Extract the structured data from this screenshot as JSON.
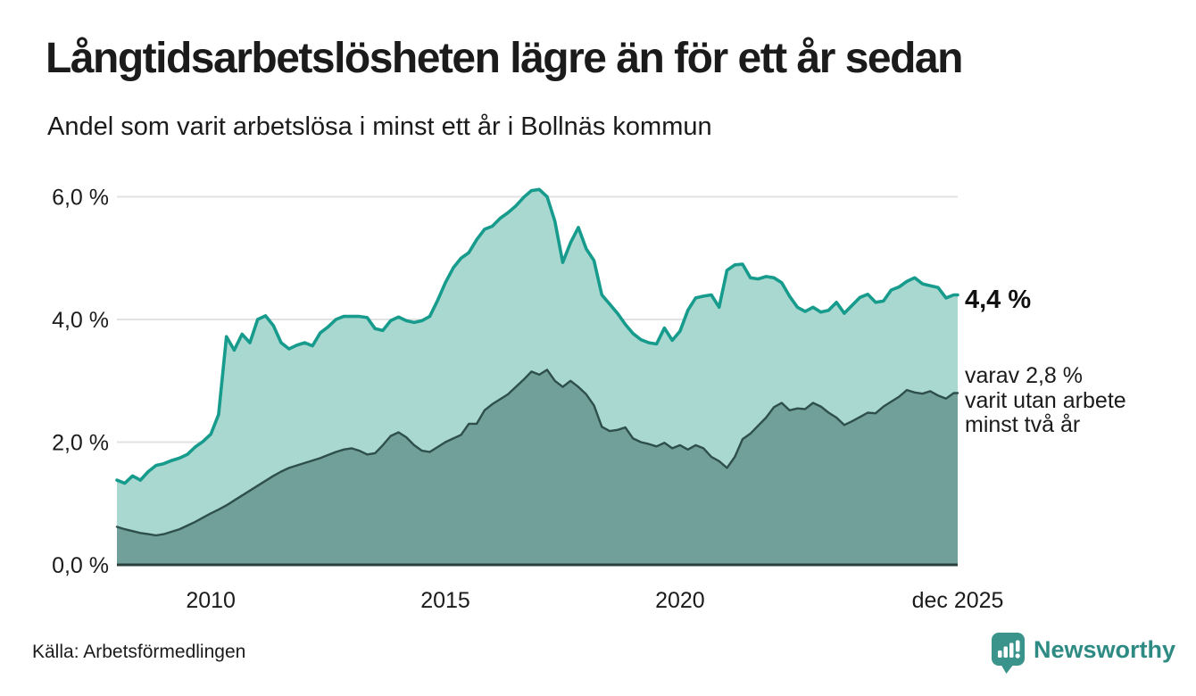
{
  "header": {
    "title": "Långtidsarbetslösheten lägre än för ett år sedan",
    "subtitle": "Andel som varit arbetslösa i minst ett år i Bollnäs kommun"
  },
  "annotations": {
    "latest_total": "4,4 %",
    "secondary": [
      "varav 2,8 %",
      "varit utan arbete",
      "minst två år"
    ]
  },
  "footer": {
    "source": "Källa: Arbetsförmedlingen",
    "brand": "Newsworthy"
  },
  "colors": {
    "accent_line": "#169b8c",
    "area_light": "#a5d6ce",
    "dark_line": "#2e4f4b",
    "area_dark": "#6f9d98",
    "grid": "#e2e2e2",
    "axis_baseline": "#2b3f3d",
    "text": "#1b1b1b",
    "brand_teal": "#2e8b84"
  },
  "chart_data": {
    "type": "area",
    "title": "Långtidsarbetslösheten lägre än för ett år sedan",
    "subtitle": "Andel som varit arbetslösa i minst ett år i Bollnäs kommun",
    "unit": "%",
    "x_start": "2008-01",
    "x_end": "2025-12",
    "step_months": 2,
    "ylim": [
      0,
      6.5
    ],
    "grid": true,
    "legend_position": "right-annotations",
    "x_ticks": [
      {
        "label": "2010",
        "month": 24
      },
      {
        "label": "2015",
        "month": 84
      },
      {
        "label": "2020",
        "month": 144
      },
      {
        "label": "dec 2025",
        "month": 215
      }
    ],
    "y_ticks": [
      {
        "label": "0,0 %",
        "value": 0
      },
      {
        "label": "2,0 %",
        "value": 2
      },
      {
        "label": "4,0 %",
        "value": 4
      },
      {
        "label": "6,0 %",
        "value": 6
      }
    ],
    "series": [
      {
        "name": "Andel arbetslösa minst ett år",
        "latest_label": "4,4 %",
        "latest_value": 4.4,
        "line_color": "#169b8c",
        "fill_color": "#a5d6ce",
        "values": [
          1.38,
          1.33,
          1.45,
          1.38,
          1.52,
          1.62,
          1.65,
          1.7,
          1.74,
          1.8,
          1.92,
          2.01,
          2.13,
          2.45,
          3.72,
          3.5,
          3.76,
          3.62,
          4.0,
          4.06,
          3.9,
          3.62,
          3.52,
          3.58,
          3.62,
          3.57,
          3.78,
          3.88,
          4.0,
          4.05,
          4.05,
          4.05,
          4.03,
          3.85,
          3.82,
          3.98,
          4.04,
          3.98,
          3.95,
          3.98,
          4.05,
          4.31,
          4.6,
          4.84,
          5.0,
          5.09,
          5.3,
          5.47,
          5.52,
          5.65,
          5.74,
          5.85,
          5.99,
          6.1,
          6.12,
          6.0,
          5.6,
          4.93,
          5.25,
          5.5,
          5.15,
          4.96,
          4.4,
          4.25,
          4.1,
          3.92,
          3.77,
          3.67,
          3.62,
          3.6,
          3.86,
          3.66,
          3.81,
          4.15,
          4.35,
          4.38,
          4.4,
          4.2,
          4.8,
          4.89,
          4.9,
          4.68,
          4.66,
          4.7,
          4.68,
          4.6,
          4.38,
          4.2,
          4.13,
          4.2,
          4.12,
          4.15,
          4.28,
          4.1,
          4.23,
          4.36,
          4.41,
          4.28,
          4.3,
          4.48,
          4.53,
          4.62,
          4.68,
          4.58,
          4.55,
          4.52,
          4.35,
          4.4
        ]
      },
      {
        "name": "Andel arbetslösa minst två år",
        "latest_label": "2,8 %",
        "latest_value": 2.8,
        "line_color": "#2e4f4b",
        "fill_color": "#6f9d98",
        "values": [
          0.62,
          0.58,
          0.55,
          0.52,
          0.5,
          0.48,
          0.5,
          0.54,
          0.58,
          0.64,
          0.7,
          0.77,
          0.84,
          0.9,
          0.97,
          1.05,
          1.13,
          1.21,
          1.29,
          1.37,
          1.45,
          1.52,
          1.58,
          1.62,
          1.66,
          1.7,
          1.74,
          1.79,
          1.84,
          1.88,
          1.9,
          1.86,
          1.8,
          1.82,
          1.95,
          2.1,
          2.16,
          2.08,
          1.95,
          1.86,
          1.84,
          1.92,
          2.0,
          2.06,
          2.12,
          2.3,
          2.3,
          2.52,
          2.62,
          2.7,
          2.78,
          2.9,
          3.02,
          3.15,
          3.1,
          3.18,
          3.0,
          2.9,
          3.0,
          2.9,
          2.78,
          2.6,
          2.25,
          2.18,
          2.2,
          2.24,
          2.06,
          2.0,
          1.97,
          1.93,
          1.99,
          1.9,
          1.95,
          1.88,
          1.95,
          1.9,
          1.76,
          1.69,
          1.58,
          1.76,
          2.05,
          2.14,
          2.27,
          2.4,
          2.57,
          2.64,
          2.52,
          2.55,
          2.54,
          2.64,
          2.58,
          2.48,
          2.4,
          2.28,
          2.34,
          2.41,
          2.48,
          2.47,
          2.58,
          2.66,
          2.74,
          2.85,
          2.81,
          2.79,
          2.83,
          2.76,
          2.71,
          2.8
        ]
      }
    ]
  }
}
